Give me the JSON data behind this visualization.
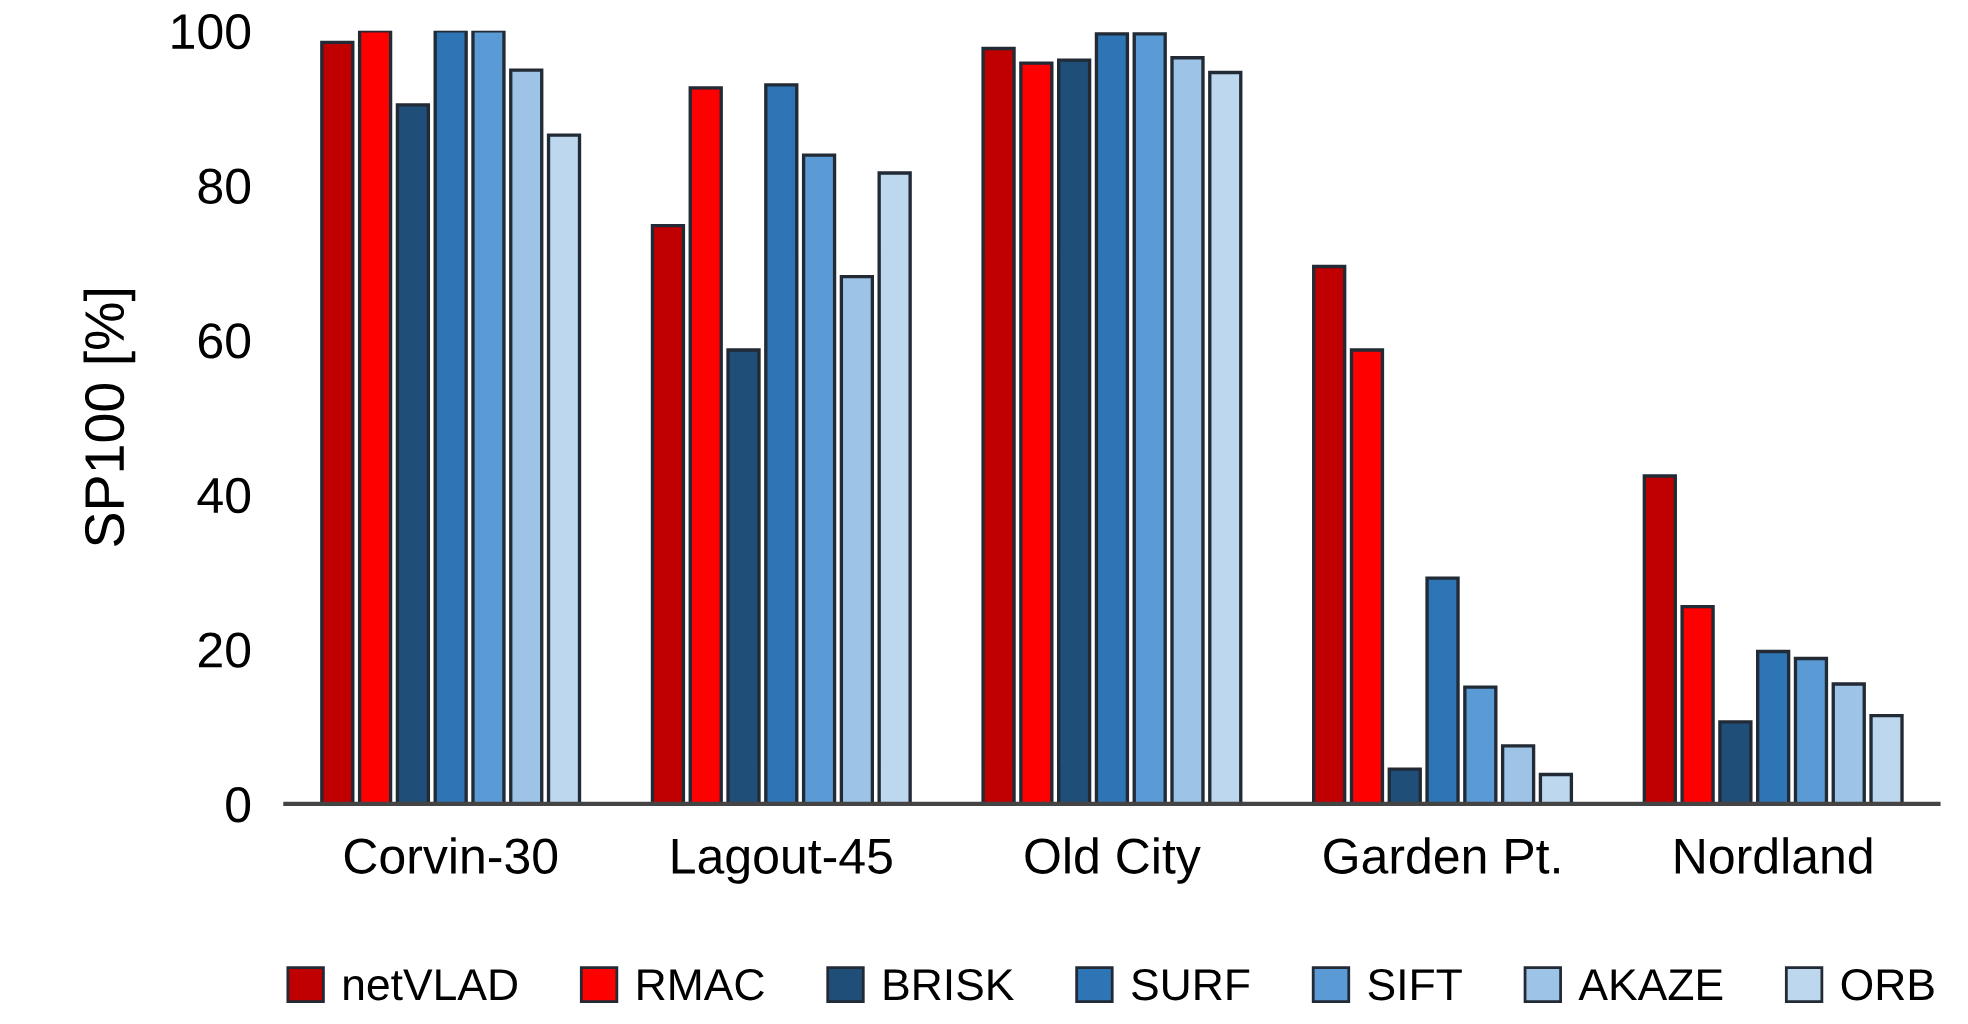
{
  "chart_data": {
    "type": "bar",
    "ylabel": "SP100 [%]",
    "categories": [
      "Corvin-30",
      "Lagout-45",
      "Old City",
      "Garden Pt.",
      "Nordland"
    ],
    "series": [
      {
        "name": "netVLAD",
        "color": "#c00000",
        "values": [
          98.5,
          74.8,
          97.7,
          69.5,
          42.4
        ]
      },
      {
        "name": "RMAC",
        "color": "#ff0000",
        "values": [
          100,
          92.6,
          95.8,
          58.7,
          25.5
        ]
      },
      {
        "name": "BRISK",
        "color": "#1f4e79",
        "values": [
          90.4,
          58.7,
          96.2,
          4.5,
          10.6
        ]
      },
      {
        "name": "SURF",
        "color": "#2e75b6",
        "values": [
          100,
          93.0,
          99.6,
          29.2,
          19.7
        ]
      },
      {
        "name": "SIFT",
        "color": "#5b9bd5",
        "values": [
          100,
          83.9,
          99.6,
          15.1,
          18.8
        ]
      },
      {
        "name": "AKAZE",
        "color": "#9dc3e6",
        "values": [
          94.9,
          68.2,
          96.5,
          7.5,
          15.5
        ]
      },
      {
        "name": "ORB",
        "color": "#bdd7ee",
        "values": [
          86.5,
          81.6,
          94.6,
          3.8,
          11.4
        ]
      }
    ],
    "ylim": [
      0,
      100
    ],
    "yticks": [
      0,
      20,
      40,
      60,
      80,
      100
    ],
    "grid": false,
    "legend": "bottom"
  }
}
